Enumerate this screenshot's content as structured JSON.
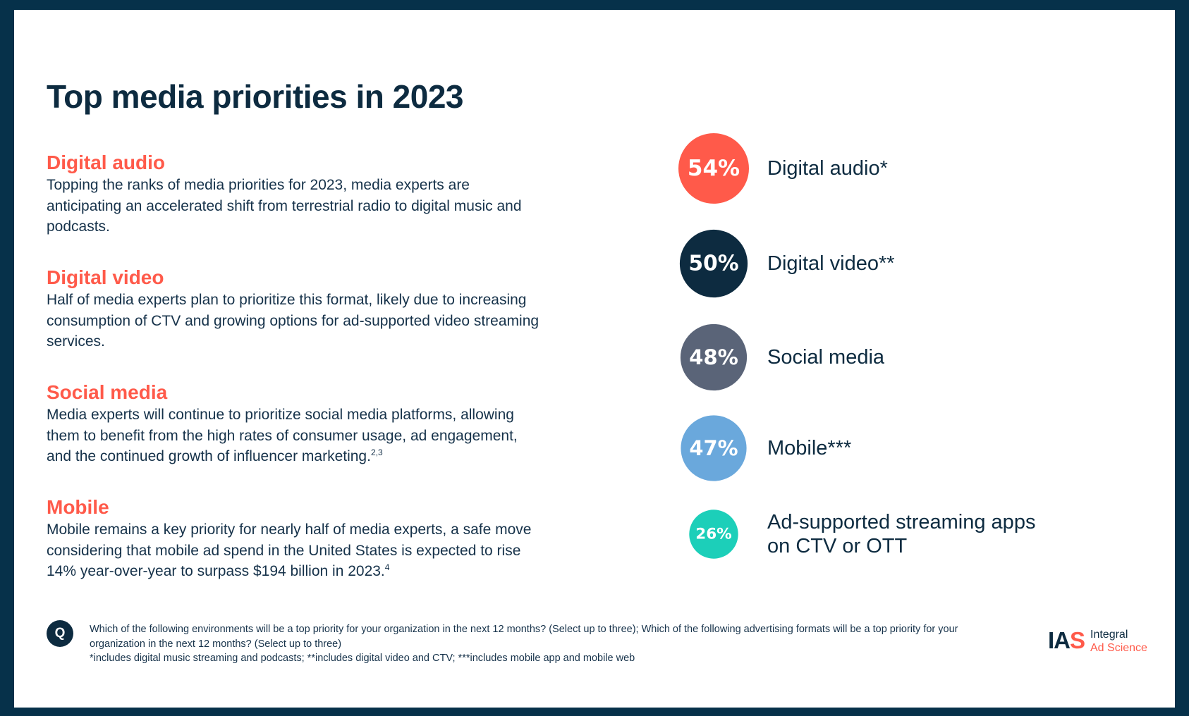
{
  "title": "Top media priorities in 2023",
  "sections": [
    {
      "heading": "Digital audio",
      "body": "Topping the ranks of media priorities for 2023, media experts are anticipating an accelerated shift from terrestrial radio to digital music and podcasts.",
      "footnote_ref": ""
    },
    {
      "heading": "Digital video",
      "body": "Half of media experts plan to prioritize this format, likely due to increasing consumption of CTV and growing options for ad-supported video streaming services.",
      "footnote_ref": ""
    },
    {
      "heading": "Social media",
      "body": "Media experts will continue to prioritize social media platforms, allowing them to benefit from the high rates of consumer usage, ad engagement, and the continued growth of influencer marketing.",
      "footnote_ref": "2,3"
    },
    {
      "heading": "Mobile",
      "body": "Mobile remains a key priority for nearly half of media experts, a safe move considering that mobile ad spend in the United States is expected to rise 14% year-over-year to surpass $194 billion in 2023.",
      "footnote_ref": "4"
    }
  ],
  "chart_data": {
    "type": "bubble",
    "title": "Top media priorities in 2023",
    "unit": "%",
    "categories": [
      "Digital audio*",
      "Digital video**",
      "Social media",
      "Mobile***",
      "Ad-supported streaming apps on CTV or OTT"
    ],
    "label_lines": [
      [
        "Digital audio*"
      ],
      [
        "Digital video**"
      ],
      [
        "Social media"
      ],
      [
        "Mobile***"
      ],
      [
        "Ad-supported streaming apps",
        "on CTV or OTT"
      ]
    ],
    "values": [
      54,
      50,
      48,
      47,
      26
    ],
    "value_labels": [
      "54%",
      "50%",
      "48%",
      "47%",
      "26%"
    ],
    "colors": [
      "#ff5a4a",
      "#0d2b40",
      "#5a6478",
      "#6aa8dc",
      "#1ccfb9"
    ]
  },
  "question_badge": "Q",
  "footnote": {
    "question": "Which of the following environments will be a top priority for your organization in the next 12 months? (Select up to three); Which of the following advertising formats will be a top priority for your organization in the next 12 months? (Select up to three)",
    "notes": "*includes digital music streaming and podcasts; **includes digital video and CTV; ***includes mobile app and mobile web"
  },
  "logo": {
    "mark_ia": "IA",
    "mark_s": "S",
    "line1": "Integral",
    "line2": "Ad Science"
  },
  "colors": {
    "background_frame": "#06314a",
    "navy": "#0d2b40",
    "coral": "#ff5a4a"
  }
}
